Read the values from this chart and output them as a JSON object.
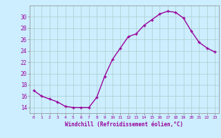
{
  "hours": [
    0,
    1,
    2,
    3,
    4,
    5,
    6,
    7,
    8,
    9,
    10,
    11,
    12,
    13,
    14,
    15,
    16,
    17,
    18,
    19,
    20,
    21,
    22,
    23
  ],
  "values": [
    17,
    16,
    15.5,
    15,
    14.2,
    14,
    14,
    14,
    15.8,
    19.5,
    22.5,
    24.5,
    26.5,
    27,
    28.5,
    29.5,
    30.5,
    31,
    30.8,
    29.8,
    27.5,
    25.5,
    24.5,
    23.8
  ],
  "line_color": "#990099",
  "marker": "+",
  "marker_size": 3,
  "bg_color": "#cceeff",
  "grid_color": "#aacccc",
  "xlabel": "Windchill (Refroidissement éolien,°C)",
  "xlabel_color": "#990099",
  "tick_color": "#990099",
  "ylim": [
    13,
    32
  ],
  "yticks": [
    14,
    16,
    18,
    20,
    22,
    24,
    26,
    28,
    30
  ],
  "xlim": [
    -0.5,
    23.5
  ],
  "line_width": 1.0
}
